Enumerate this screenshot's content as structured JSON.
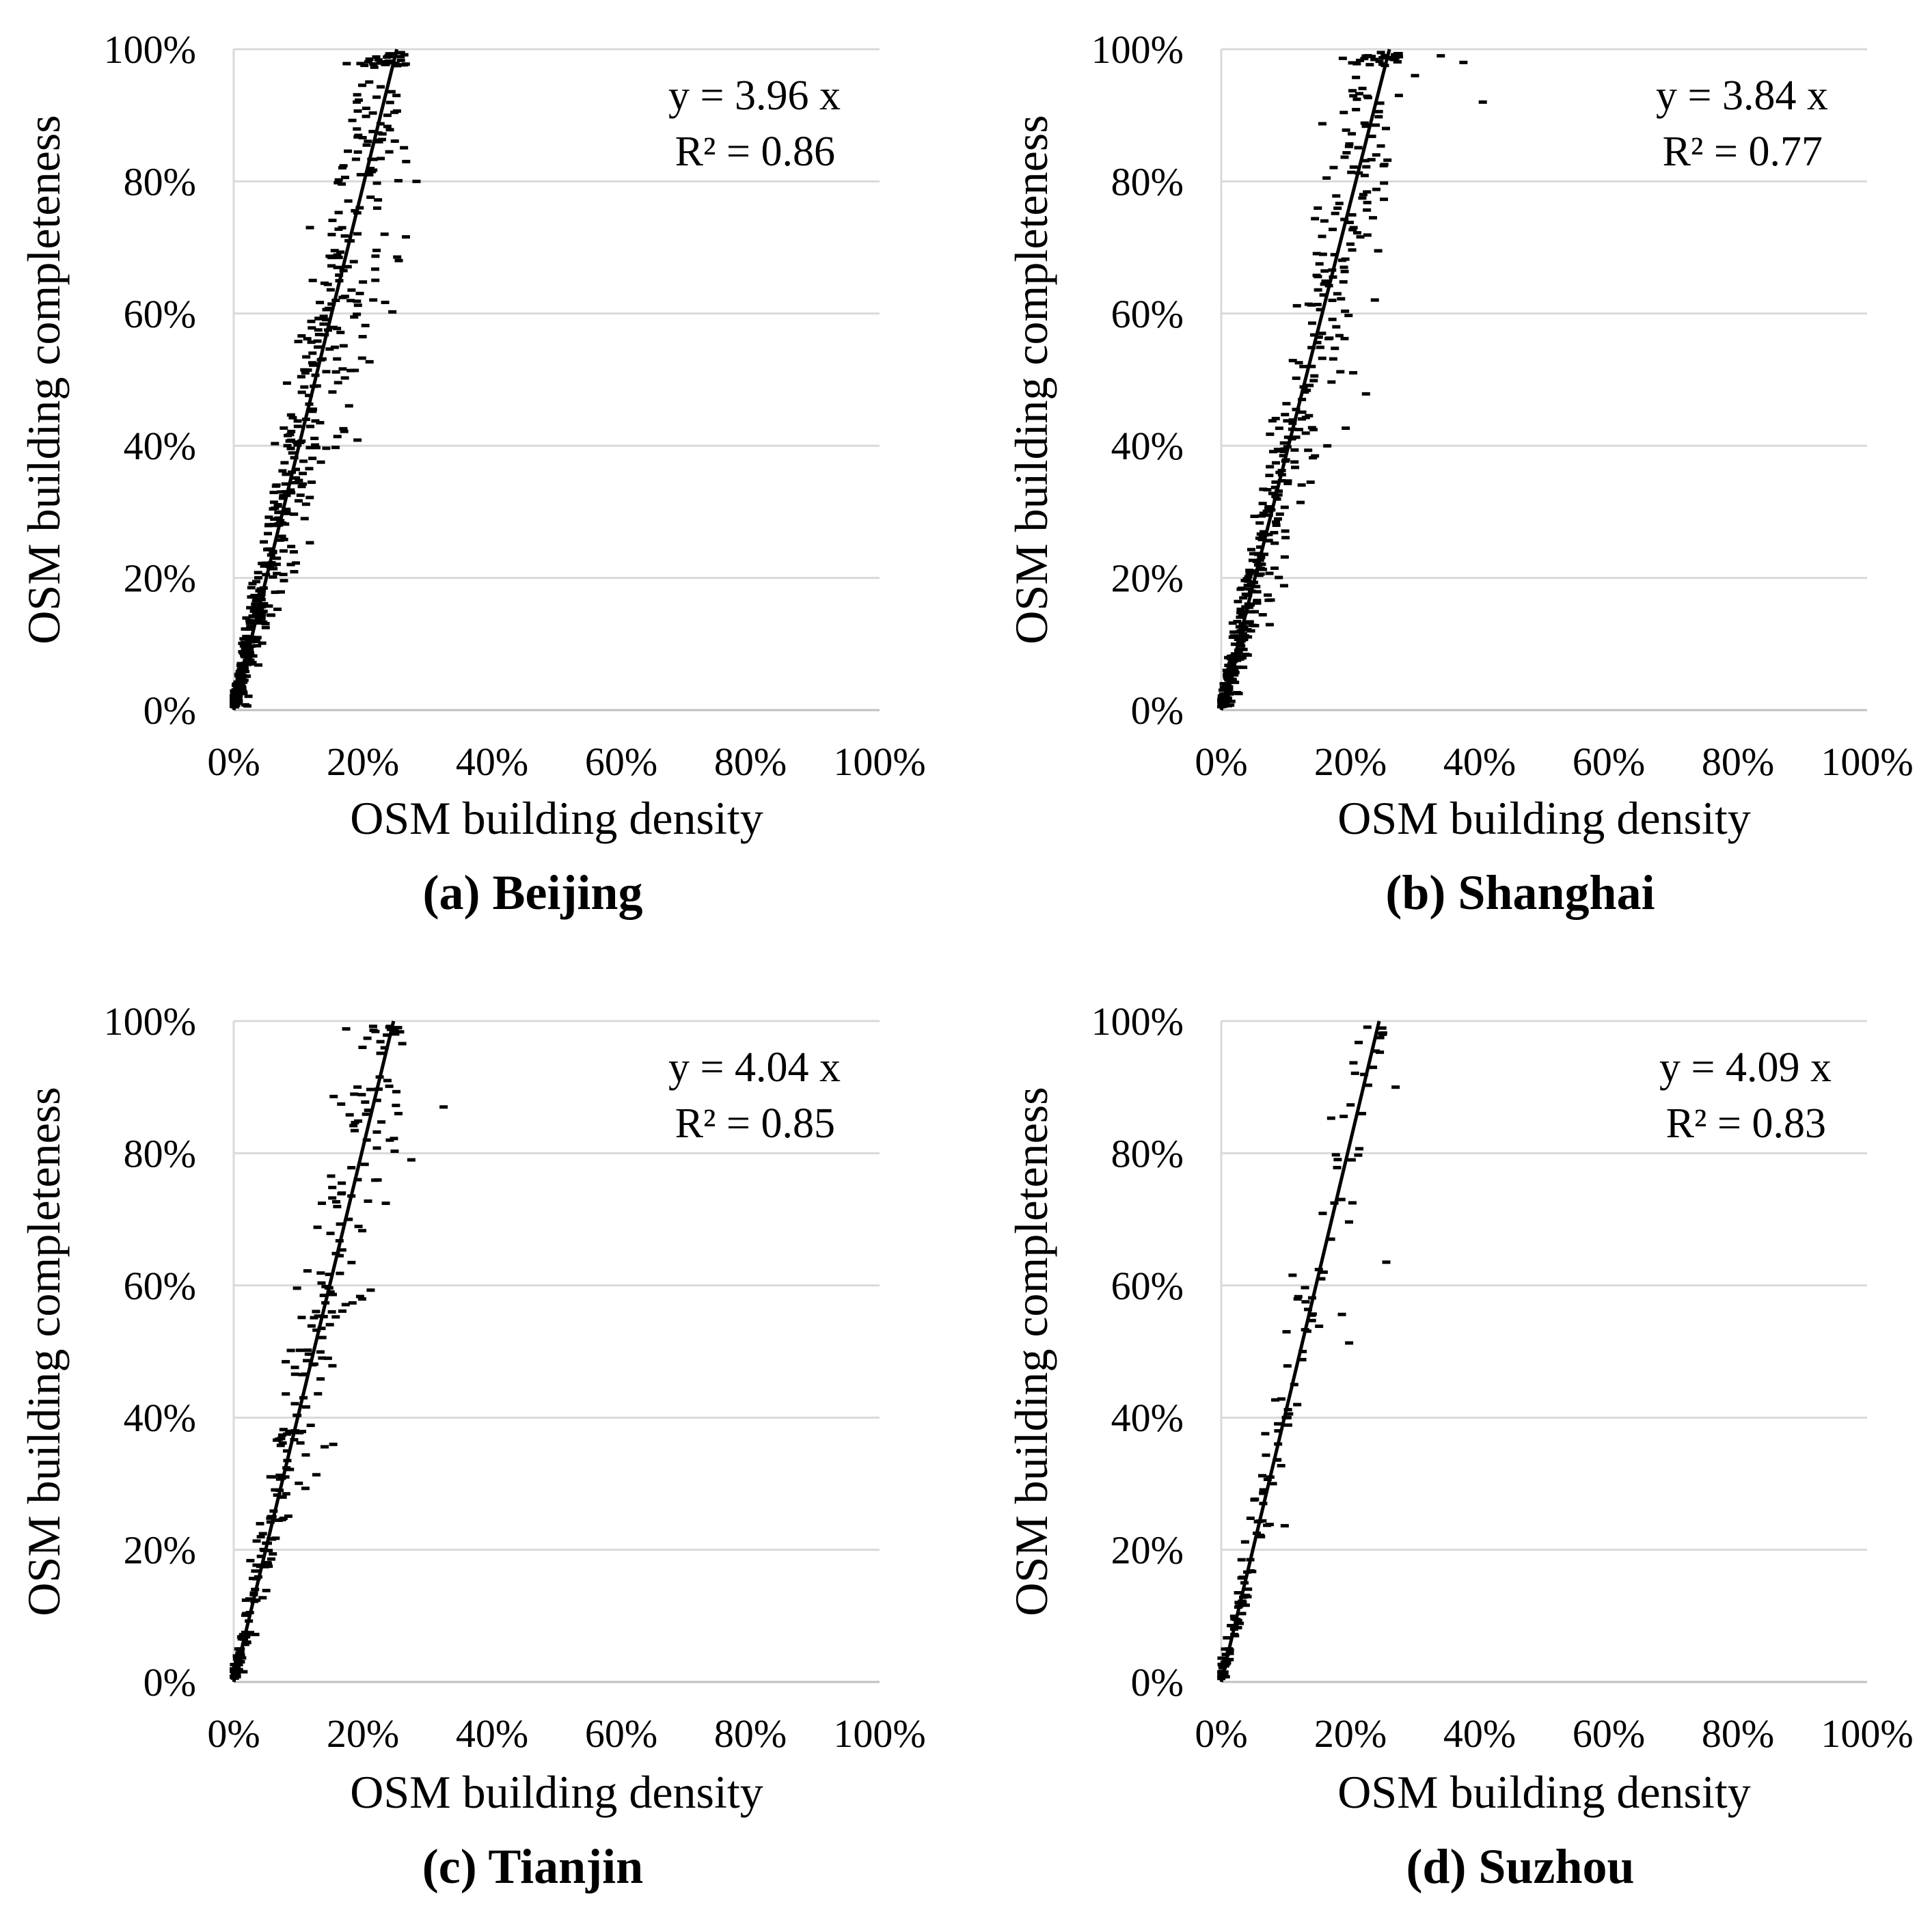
{
  "figure": {
    "x_axis_title": "OSM building density",
    "y_axis_title": "OSM building completeness",
    "x_ticks": [
      "0%",
      "20%",
      "40%",
      "60%",
      "80%",
      "100%"
    ],
    "y_ticks": [
      "0%",
      "20%",
      "40%",
      "60%",
      "80%",
      "100%"
    ]
  },
  "chart_data": [
    {
      "type": "scatter",
      "title": "(a) Beijing",
      "xlabel": "OSM building density",
      "ylabel": "OSM building completeness",
      "xlim": [
        0,
        100
      ],
      "ylim": [
        0,
        100
      ],
      "grid": "horizontal",
      "equation": "y = 3.96 x",
      "r2": "R² = 0.86",
      "slope": 3.96,
      "n_points": 520,
      "x": [
        0.5,
        1.2,
        2.0,
        2.8,
        3.5,
        4.2,
        5.0,
        6.1,
        7.0,
        8.2,
        9.0,
        10.3,
        11.2,
        12.4,
        13.5,
        14.6,
        15.8,
        17.0,
        18.1,
        19.5,
        21.0,
        22.5,
        23.8,
        25.2,
        26.7,
        28.3
      ],
      "y": [
        1.8,
        5.0,
        8.5,
        11.0,
        14.5,
        17.0,
        20.5,
        24.0,
        28.0,
        32.5,
        36.0,
        40.5,
        44.0,
        49.0,
        53.0,
        57.5,
        62.0,
        66.5,
        71.0,
        76.0,
        81.0,
        86.0,
        90.0,
        93.0,
        83.0,
        80.0
      ]
    },
    {
      "type": "scatter",
      "title": "(b) Shanghai",
      "xlabel": "OSM building density",
      "ylabel": "OSM building completeness",
      "xlim": [
        0,
        100
      ],
      "ylim": [
        0,
        100
      ],
      "grid": "horizontal",
      "equation": "y = 3.84 x",
      "r2": "R² = 0.77",
      "slope": 3.84,
      "n_points": 460,
      "x": [
        0.5,
        1.3,
        2.1,
        3.0,
        3.8,
        4.6,
        5.5,
        6.4,
        7.3,
        8.4,
        9.6,
        11.0,
        12.5,
        14.0,
        15.6,
        17.2,
        19.0,
        20.5,
        22.0,
        24.0,
        25.5,
        27.5,
        30.0,
        34.0,
        37.5,
        40.5
      ],
      "y": [
        1.5,
        5.0,
        8.5,
        12.0,
        15.5,
        19.0,
        22.5,
        26.5,
        30.5,
        34.5,
        38.5,
        42.5,
        47.0,
        52.0,
        57.0,
        62.0,
        67.0,
        73.0,
        78.0,
        84.0,
        88.0,
        93.0,
        96.0,
        99.0,
        98.0,
        92.0
      ]
    },
    {
      "type": "scatter",
      "title": "(c) Tianjin",
      "xlabel": "OSM building density",
      "ylabel": "OSM building completeness",
      "xlim": [
        0,
        100
      ],
      "ylim": [
        0,
        100
      ],
      "grid": "horizontal",
      "equation": "y = 4.04 x",
      "r2": "R² = 0.85",
      "slope": 4.04,
      "n_points": 260,
      "x": [
        0.4,
        1.0,
        1.8,
        2.5,
        3.3,
        4.1,
        5.0,
        6.0,
        7.1,
        8.3,
        9.5,
        10.8,
        12.2,
        13.6,
        15.0,
        16.4,
        17.8,
        19.2,
        20.6,
        22.2,
        23.8,
        25.5,
        27.5,
        32.5
      ],
      "y": [
        1.5,
        4.5,
        7.5,
        10.5,
        14.0,
        17.5,
        21.0,
        25.0,
        29.0,
        33.5,
        38.0,
        43.0,
        48.0,
        53.5,
        59.0,
        64.5,
        70.0,
        76.0,
        82.0,
        88.0,
        91.0,
        86.0,
        79.0,
        87.0
      ]
    },
    {
      "type": "scatter",
      "title": "(d) Suzhou",
      "xlabel": "OSM building density",
      "ylabel": "OSM building completeness",
      "xlim": [
        0,
        100
      ],
      "ylim": [
        0,
        100
      ],
      "grid": "horizontal",
      "equation": "y = 4.09 x",
      "r2": "R² = 0.83",
      "slope": 4.09,
      "n_points": 140,
      "x": [
        0.5,
        1.2,
        2.0,
        2.8,
        3.6,
        4.5,
        5.5,
        6.5,
        7.6,
        8.8,
        10.0,
        11.3,
        12.6,
        14.0,
        15.5,
        17.0,
        18.6,
        20.2,
        21.8,
        23.5,
        25.0,
        27.0
      ],
      "y": [
        1.5,
        5.0,
        8.0,
        11.5,
        15.0,
        18.5,
        22.5,
        27.0,
        31.0,
        36.0,
        40.0,
        45.0,
        50.0,
        55.5,
        61.0,
        67.0,
        73.0,
        79.0,
        86.0,
        93.0,
        98.0,
        90.0
      ]
    }
  ]
}
